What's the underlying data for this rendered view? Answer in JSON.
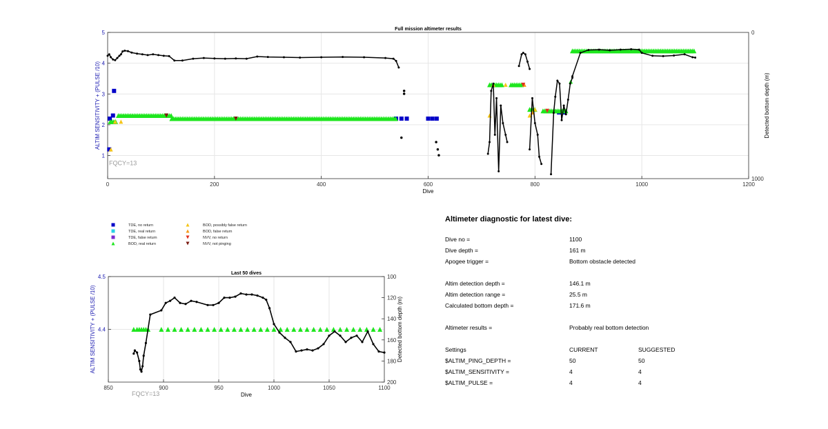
{
  "colors": {
    "tde_no_return": "#0000c8",
    "tde_real_return": "#29d2e6",
    "tde_false_return": "#7a2bd1",
    "bod_real_return": "#1ee61e",
    "bod_possibly_false": "#f5c518",
    "bod_false_return": "#f59a1b",
    "nvv_no_return": "#e0301e",
    "nvv_not_pinging": "#7a1a10",
    "depth_line": "#000000",
    "ylabel_left": "#1a1ab0",
    "fqcy": "#9a9a9a"
  },
  "legend": [
    {
      "label": "TDE, no return",
      "marker": "square",
      "color_key": "tde_no_return"
    },
    {
      "label": "TDE, real return",
      "marker": "square",
      "color_key": "tde_real_return"
    },
    {
      "label": "TDE, false return",
      "marker": "square",
      "color_key": "tde_false_return"
    },
    {
      "label": "BOD, real return",
      "marker": "triangle-up",
      "color_key": "bod_real_return"
    },
    {
      "label": "BOD, possibly false return",
      "marker": "triangle-up",
      "color_key": "bod_possibly_false"
    },
    {
      "label": "BOD, false return",
      "marker": "triangle-up",
      "color_key": "bod_false_return"
    },
    {
      "label": "NVV, no return",
      "marker": "triangle-down",
      "color_key": "nvv_no_return"
    },
    {
      "label": "NVV, not pinging",
      "marker": "triangle-down",
      "color_key": "nvv_not_pinging"
    }
  ],
  "chart_data": [
    {
      "type": "scatter",
      "title": "Full mission altimeter results",
      "xlabel": "Dive",
      "ylabel_left": "ALTIM SENSITIVITY + (PULSE /10)",
      "ylabel_right": "Detected bottom depth (m)",
      "xlim": [
        0,
        1200
      ],
      "ylim_left": [
        0.25,
        5
      ],
      "ylim_right": [
        1000,
        0
      ],
      "right_axis_reversed": true,
      "x_ticks": [
        0,
        200,
        400,
        600,
        800,
        1000,
        1200
      ],
      "y_ticks_left": [
        1,
        2,
        3,
        4,
        5
      ],
      "y_tick_labels_right": [
        "0",
        "1000"
      ],
      "grid": true,
      "annotation": "FQCY=13",
      "series": [
        {
          "name": "TDE, no return",
          "marker": "square",
          "color_key": "tde_no_return",
          "points": [
            [
              3,
              1.2
            ],
            [
              12,
              3.1
            ],
            [
              4,
              2.2
            ],
            [
              10,
              2.3
            ],
            [
              540,
              2.2
            ],
            [
              550,
              2.2
            ],
            [
              560,
              2.2
            ],
            [
              600,
              2.2
            ],
            [
              608,
              2.2
            ],
            [
              616,
              2.2
            ],
            [
              845,
              2.4
            ],
            [
              855,
              2.4
            ]
          ]
        },
        {
          "name": "BOD, real return",
          "marker": "triangle",
          "color_key": "bod_real_return",
          "segments": [
            [
              5,
              18,
              2.1
            ],
            [
              20,
              120,
              2.3
            ],
            [
              120,
              540,
              2.2
            ],
            [
              715,
              740,
              3.3
            ],
            [
              755,
              775,
              3.3
            ],
            [
              790,
              800,
              2.5
            ],
            [
              815,
              860,
              2.45
            ],
            [
              870,
              1100,
              4.4
            ]
          ],
          "points": [
            [
              867,
              3.4
            ]
          ]
        },
        {
          "name": "BOD, possibly false return",
          "marker": "triangle",
          "color_key": "bod_possibly_false",
          "points": [
            [
              6,
              1.2
            ],
            [
              14,
              2.1
            ],
            [
              25,
              2.1
            ],
            [
              715,
              2.3
            ],
            [
              722,
              3.3
            ],
            [
              745,
              3.3
            ],
            [
              790,
              2.3
            ],
            [
              800,
              2.5
            ]
          ]
        },
        {
          "name": "BOD, false return",
          "marker": "triangle",
          "color_key": "bod_false_return",
          "points": [
            [
              780,
              3.3
            ],
            [
              795,
              2.4
            ]
          ]
        },
        {
          "name": "NVV, no return",
          "marker": "triangle-down",
          "color_key": "nvv_no_return",
          "points": [
            [
              778,
              3.3
            ],
            [
              823,
              2.45
            ]
          ]
        },
        {
          "name": "NVV, not pinging",
          "marker": "triangle-down",
          "color_key": "nvv_not_pinging",
          "points": [
            [
              110,
              2.3
            ],
            [
              240,
              2.2
            ]
          ]
        },
        {
          "name": "Detected bottom depth",
          "axis": "right",
          "marker": "dot",
          "color_key": "depth_line",
          "line_points": [
            [
              0,
              160
            ],
            [
              3,
              150
            ],
            [
              6,
              170
            ],
            [
              10,
              185
            ],
            [
              14,
              190
            ],
            [
              18,
              175
            ],
            [
              22,
              160
            ],
            [
              25,
              150
            ],
            [
              28,
              130
            ],
            [
              32,
              125
            ],
            [
              38,
              128
            ],
            [
              45,
              138
            ],
            [
              55,
              145
            ],
            [
              65,
              150
            ],
            [
              75,
              155
            ],
            [
              85,
              150
            ],
            [
              95,
              155
            ],
            [
              105,
              160
            ],
            [
              115,
              162
            ],
            [
              125,
              192
            ],
            [
              140,
              192
            ],
            [
              160,
              180
            ],
            [
              180,
              175
            ],
            [
              200,
              178
            ],
            [
              220,
              180
            ],
            [
              240,
              178
            ],
            [
              260,
              180
            ],
            [
              280,
              165
            ],
            [
              300,
              168
            ],
            [
              330,
              170
            ],
            [
              360,
              172
            ],
            [
              400,
              170
            ],
            [
              440,
              168
            ],
            [
              480,
              170
            ],
            [
              520,
              175
            ],
            [
              535,
              180
            ],
            [
              540,
              195
            ],
            [
              545,
              240
            ]
          ],
          "isolated_points": [
            [
              550,
              720
            ],
            [
              555,
              400
            ],
            [
              555,
              420
            ],
            [
              615,
              750
            ],
            [
              618,
              800
            ],
            [
              620,
              840
            ]
          ],
          "extra_segments": [
            [
              [
                712,
                830
              ],
              [
                715,
                750
              ],
              [
                718,
                400
              ],
              [
                722,
                350
              ],
              [
                725,
                700
              ],
              [
                728,
                450
              ],
              [
                732,
                950
              ],
              [
                736,
                500
              ],
              [
                740,
                620
              ],
              [
                745,
                700
              ],
              [
                748,
                750
              ]
            ],
            [
              [
                770,
                230
              ],
              [
                775,
                150
              ],
              [
                778,
                140
              ],
              [
                782,
                150
              ],
              [
                786,
                200
              ],
              [
                790,
                250
              ]
            ],
            [
              [
                790,
                800
              ],
              [
                795,
                450
              ],
              [
                800,
                620
              ],
              [
                805,
                700
              ],
              [
                808,
                850
              ],
              [
                812,
                900
              ]
            ],
            [
              [
                830,
                970
              ],
              [
                835,
                550
              ],
              [
                838,
                440
              ],
              [
                842,
                330
              ],
              [
                846,
                350
              ],
              [
                850,
                600
              ],
              [
                854,
                500
              ],
              [
                858,
                560
              ],
              [
                862,
                460
              ],
              [
                866,
                350
              ],
              [
                870,
                310
              ]
            ],
            [
              [
                870,
                300
              ],
              [
                885,
                140
              ],
              [
                900,
                120
              ],
              [
                920,
                118
              ],
              [
                940,
                122
              ],
              [
                960,
                118
              ],
              [
                980,
                115
              ],
              [
                995,
                118
              ],
              [
                1000,
                140
              ],
              [
                1020,
                160
              ],
              [
                1040,
                162
              ],
              [
                1060,
                158
              ],
              [
                1080,
                150
              ],
              [
                1095,
                170
              ],
              [
                1100,
                172
              ]
            ]
          ]
        }
      ]
    },
    {
      "type": "line",
      "title": "Last 50 dives",
      "xlabel": "Dive",
      "ylabel_left": "ALTIM SENSITIVITY + (PULSE /10)",
      "ylabel_right": "Detected bottom depth (m)",
      "xlim": [
        850,
        1100
      ],
      "ylim_left": [
        4.3,
        4.5
      ],
      "ylim_right": [
        200,
        100
      ],
      "right_axis_reversed": true,
      "x_ticks": [
        850,
        900,
        950,
        1000,
        1050,
        1100
      ],
      "y_ticks_left": [
        4.4,
        4.5
      ],
      "y_ticks_right": [
        100,
        120,
        140,
        160,
        180,
        200
      ],
      "grid": true,
      "annotation": "FQCY=13",
      "bod_real_return_x": [
        873,
        876,
        878,
        880,
        882,
        884,
        886,
        898,
        904,
        910,
        916,
        922,
        928,
        934,
        940,
        946,
        952,
        958,
        964,
        970,
        976,
        982,
        988,
        994,
        1000,
        1006,
        1012,
        1018,
        1024,
        1030,
        1036,
        1042,
        1048,
        1054,
        1060,
        1066,
        1072,
        1078,
        1084,
        1090,
        1096
      ],
      "bod_real_return_y": 4.4,
      "depth_x": [
        873,
        874,
        876,
        878,
        879,
        880,
        881,
        882,
        884,
        888,
        898,
        902,
        906,
        910,
        915,
        920,
        925,
        930,
        940,
        945,
        950,
        955,
        960,
        965,
        970,
        975,
        980,
        985,
        990,
        993,
        996,
        1000,
        1005,
        1010,
        1015,
        1020,
        1025,
        1030,
        1035,
        1040,
        1045,
        1050,
        1055,
        1060,
        1065,
        1070,
        1075,
        1080,
        1085,
        1090,
        1095,
        1100
      ],
      "depth_y": [
        173,
        170,
        172,
        180,
        188,
        190,
        185,
        175,
        163,
        136,
        132,
        125,
        123,
        120,
        125,
        126,
        123,
        124,
        127,
        127,
        125,
        120,
        120,
        119,
        116,
        117,
        117,
        118,
        120,
        122,
        130,
        145,
        153,
        158,
        162,
        171,
        170,
        169,
        170,
        168,
        164,
        156,
        152,
        156,
        162,
        158,
        156,
        162,
        152,
        164,
        171,
        172
      ]
    }
  ],
  "diagnostic": {
    "title": "Altimeter diagnostic for latest dive:",
    "rows": [
      {
        "label": "Dive no =",
        "value": "1100"
      },
      {
        "label": "Dive depth =",
        "value": "161 m"
      },
      {
        "label": "Apogee trigger =",
        "value": "Bottom obstacle detected"
      },
      {
        "label": "Altim detection depth =",
        "value": "146.1 m"
      },
      {
        "label": "Altim detection range =",
        "value": "25.5 m"
      },
      {
        "label": "Calculated bottom depth =",
        "value": "171.6 m"
      },
      {
        "label": "Altimeter results =",
        "value": "Probably real bottom detection"
      }
    ],
    "settings_header": {
      "label": "Settings",
      "current": "CURRENT",
      "suggested": "SUGGESTED"
    },
    "settings": [
      {
        "label": "$ALTIM_PING_DEPTH =",
        "current": "50",
        "suggested": "50"
      },
      {
        "label": "$ALTIM_SENSITIVITY =",
        "current": "4",
        "suggested": "4"
      },
      {
        "label": "$ALTIM_PULSE =",
        "current": "4",
        "suggested": "4"
      }
    ]
  }
}
